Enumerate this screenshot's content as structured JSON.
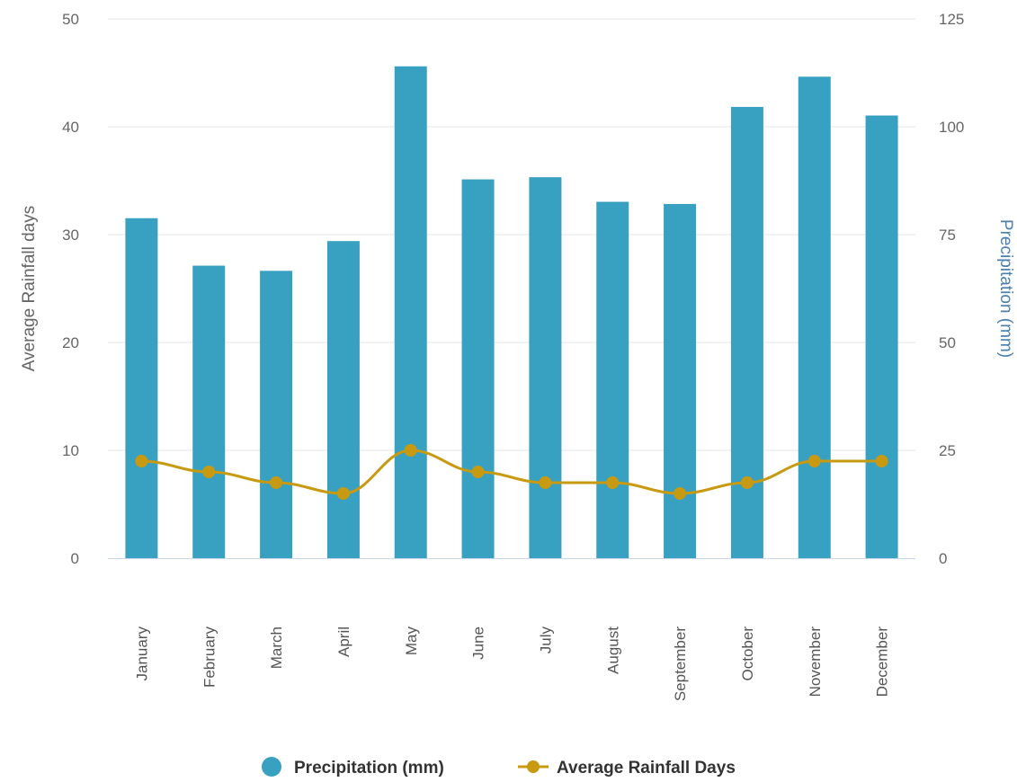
{
  "chart_data": {
    "type": "bar",
    "categories": [
      "January",
      "February",
      "March",
      "April",
      "May",
      "June",
      "July",
      "August",
      "September",
      "October",
      "November",
      "December"
    ],
    "series": [
      {
        "name": "Precipitation (mm)",
        "type": "bar",
        "axis": "right",
        "color": "#38a0c0",
        "values": [
          78.8,
          67.8,
          66.6,
          73.5,
          114,
          87.8,
          88.3,
          82.6,
          82.1,
          104.6,
          111.6,
          102.6
        ]
      },
      {
        "name": "Average Rainfall Days",
        "type": "line",
        "axis": "left",
        "color": "#c89a12",
        "values": [
          9,
          8,
          7,
          6,
          10,
          8,
          7,
          7,
          6,
          7,
          9,
          9
        ]
      }
    ],
    "yaxis_left": {
      "title": "Average Rainfall days",
      "range": [
        0,
        50
      ],
      "ticks": [
        "0",
        "10",
        "20",
        "30",
        "40",
        "50"
      ],
      "color": "#666666"
    },
    "yaxis_right": {
      "title": "Precipitation (mm)",
      "range": [
        0,
        125
      ],
      "ticks": [
        "0",
        "25",
        "50",
        "75",
        "100",
        "125"
      ],
      "color": "#4a7fb0"
    },
    "grid": true,
    "legend_position": "bottom-center",
    "xlabel": "",
    "title": ""
  }
}
